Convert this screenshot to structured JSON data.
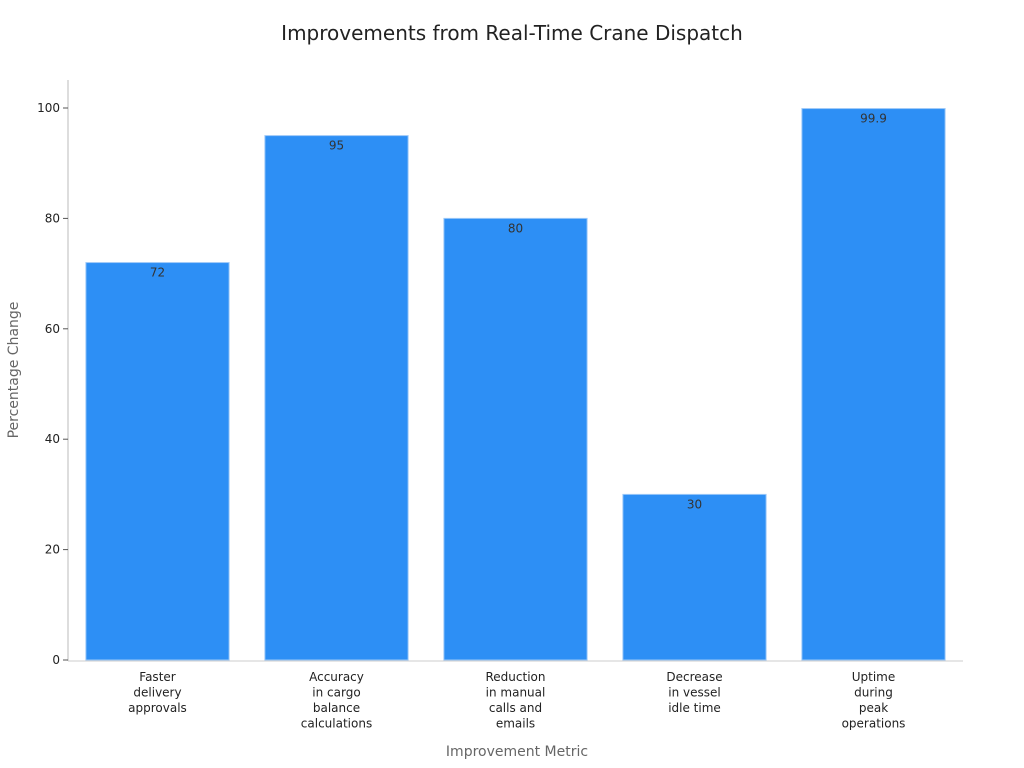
{
  "chart_data": {
    "type": "bar",
    "title": "Improvements from Real-Time Crane Dispatch",
    "x_label": "Improvement Metric",
    "y_label": "Percentage Change",
    "categories": [
      "Faster delivery approvals",
      "Accuracy in cargo balance calculations",
      "Reduction in manual calls and emails",
      "Decrease in vessel idle time",
      "Uptime during peak operations"
    ],
    "values": [
      72,
      95,
      80,
      30,
      99.9
    ],
    "color": "#2d8ff5",
    "ylim": [
      0,
      105
    ],
    "yticks": [
      0,
      20,
      40,
      60,
      80,
      100
    ],
    "grid": false
  }
}
